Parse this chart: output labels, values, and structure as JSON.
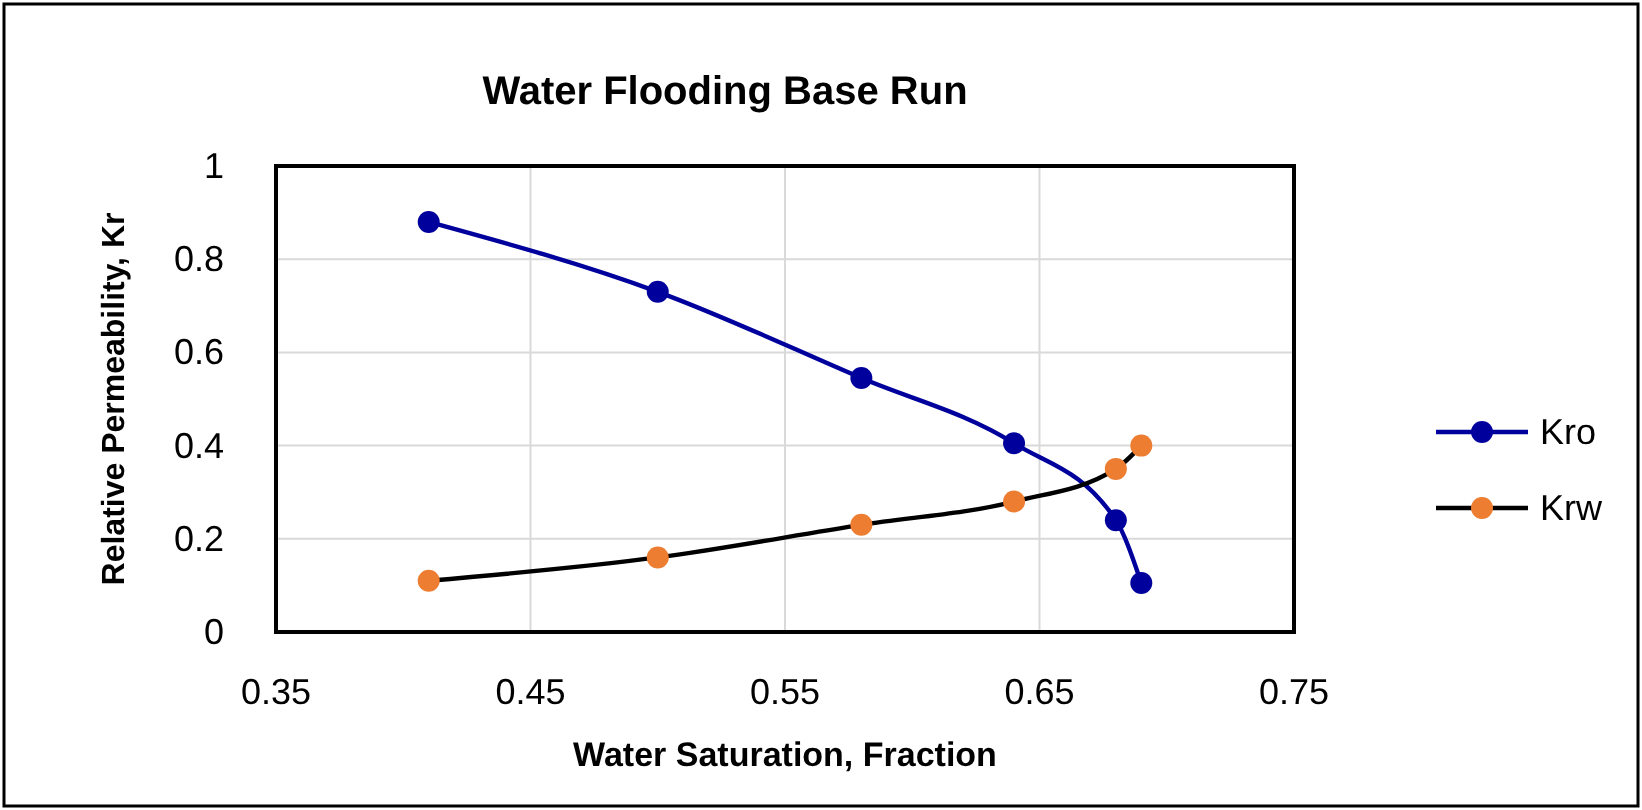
{
  "chart_data": {
    "type": "line",
    "title": "Water Flooding Base Run",
    "xlabel": "Water Saturation, Fraction",
    "ylabel": "Relative Permeability, Kr",
    "x": [
      0.41,
      0.5,
      0.58,
      0.64,
      0.68,
      0.69
    ],
    "series": [
      {
        "name": "Kro",
        "color": "#00009c",
        "colors": [
          "#00009c",
          "#00009c",
          "#00009c",
          "#00009c",
          "#00009c",
          "#00009c"
        ],
        "values": [
          0.88,
          0.73,
          0.545,
          0.405,
          0.24,
          0.105
        ]
      },
      {
        "name": "Krw",
        "color": "#000000",
        "colors": [
          "#ed7d31",
          "#ed7d31",
          "#ed7d31",
          "#ed7d31",
          "#ed7d31",
          "#ed7d31"
        ],
        "values": [
          0.11,
          0.16,
          0.23,
          0.28,
          0.35,
          0.4
        ]
      }
    ],
    "xlim": [
      0.35,
      0.75
    ],
    "xticks": [
      0.35,
      0.45,
      0.55,
      0.65,
      0.75
    ],
    "ylim": [
      0,
      1
    ],
    "yticks": [
      0,
      0.2,
      0.4,
      0.6,
      0.8,
      1
    ],
    "grid": true,
    "legend": "right",
    "marker": "circle",
    "line_style": "solid"
  }
}
